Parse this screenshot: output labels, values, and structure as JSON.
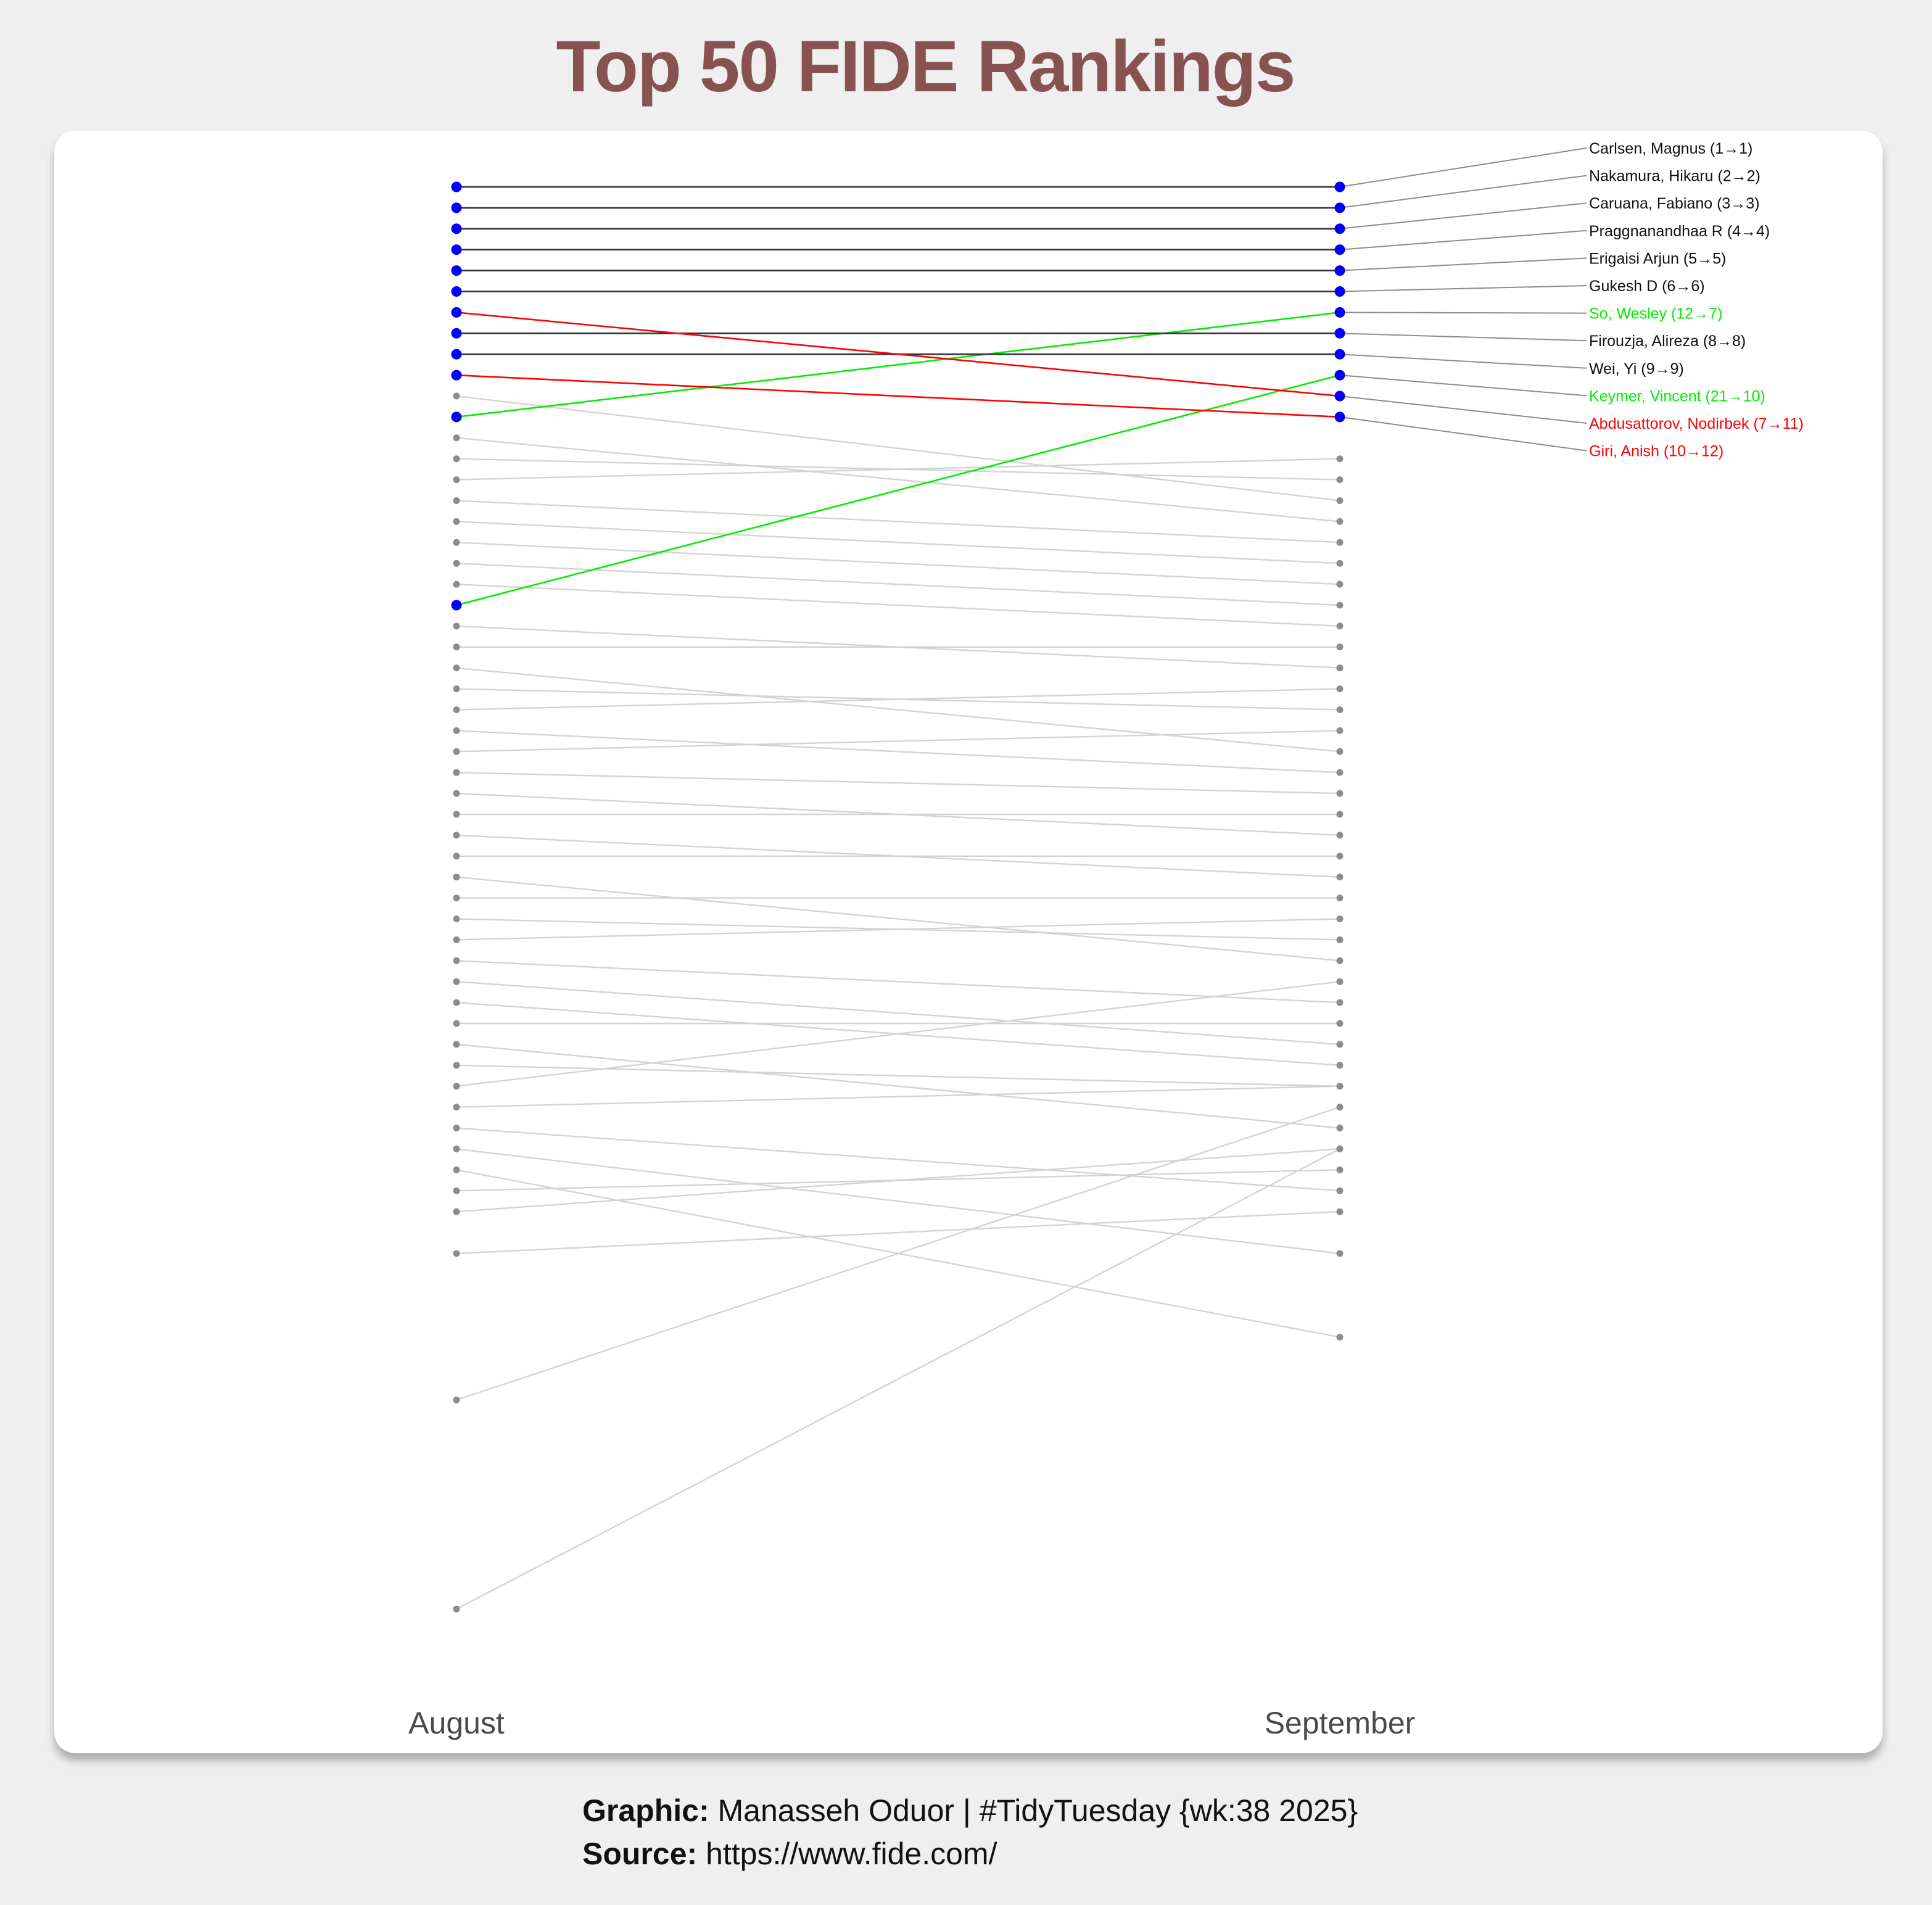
{
  "title": "Top 50 FIDE Rankings",
  "caption": {
    "graphic_label": "Graphic:",
    "graphic_text": "Manasseh Oduor | #TidyTuesday {wk:38 2025}",
    "source_label": "Source:",
    "source_text": "https://www.fide.com/"
  },
  "colors": {
    "title": "#87524f",
    "highlight_point": "#0000ff",
    "same": "#333333",
    "up": "#00ee00",
    "down": "#ff0000",
    "background_line": "#d3d3d3",
    "background_point": "#8c8c8c"
  },
  "chart_data": {
    "type": "slope",
    "x_categories": [
      "August",
      "September"
    ],
    "y_axis": "rank (reversed, 1 at top)",
    "highlighted": [
      {
        "label": "Carlsen, Magnus (1→1)",
        "august": 1,
        "september": 1,
        "change": "same"
      },
      {
        "label": "Nakamura, Hikaru (2→2)",
        "august": 2,
        "september": 2,
        "change": "same"
      },
      {
        "label": "Caruana, Fabiano (3→3)",
        "august": 3,
        "september": 3,
        "change": "same"
      },
      {
        "label": "Praggnanandhaa R (4→4)",
        "august": 4,
        "september": 4,
        "change": "same"
      },
      {
        "label": "Erigaisi Arjun (5→5)",
        "august": 5,
        "september": 5,
        "change": "same"
      },
      {
        "label": "Gukesh D (6→6)",
        "august": 6,
        "september": 6,
        "change": "same"
      },
      {
        "label": "So, Wesley (12→7)",
        "august": 12,
        "september": 7,
        "change": "up"
      },
      {
        "label": "Firouzja, Alireza (8→8)",
        "august": 8,
        "september": 8,
        "change": "same"
      },
      {
        "label": "Wei, Yi (9→9)",
        "august": 9,
        "september": 9,
        "change": "same"
      },
      {
        "label": "Keymer, Vincent (21→10)",
        "august": 21,
        "september": 10,
        "change": "up"
      },
      {
        "label": "Abdusattorov, Nodirbek (7→11)",
        "august": 7,
        "september": 11,
        "change": "down"
      },
      {
        "label": "Giri, Anish (10→12)",
        "august": 10,
        "september": 12,
        "change": "down"
      }
    ],
    "others": [
      [
        11,
        16
      ],
      [
        13,
        17
      ],
      [
        14,
        15
      ],
      [
        15,
        14
      ],
      [
        16,
        18
      ],
      [
        17,
        19
      ],
      [
        18,
        20
      ],
      [
        19,
        21
      ],
      [
        20,
        22
      ],
      [
        22,
        24
      ],
      [
        23,
        23
      ],
      [
        24,
        28
      ],
      [
        25,
        26
      ],
      [
        26,
        25
      ],
      [
        27,
        29
      ],
      [
        28,
        27
      ],
      [
        29,
        30
      ],
      [
        30,
        32
      ],
      [
        31,
        31
      ],
      [
        32,
        34
      ],
      [
        33,
        33
      ],
      [
        34,
        38
      ],
      [
        35,
        35
      ],
      [
        36,
        37
      ],
      [
        37,
        36
      ],
      [
        38,
        40
      ],
      [
        39,
        42
      ],
      [
        40,
        43
      ],
      [
        41,
        41
      ],
      [
        42,
        46
      ],
      [
        43,
        44
      ],
      [
        44,
        39
      ],
      [
        45,
        44
      ],
      [
        46,
        49
      ],
      [
        47,
        52
      ],
      [
        48,
        56
      ],
      [
        49,
        48
      ],
      [
        50,
        47
      ],
      [
        52,
        50
      ],
      [
        59,
        45
      ],
      [
        69,
        47
      ]
    ]
  },
  "axis_labels": {
    "left": "August",
    "right": "September"
  }
}
